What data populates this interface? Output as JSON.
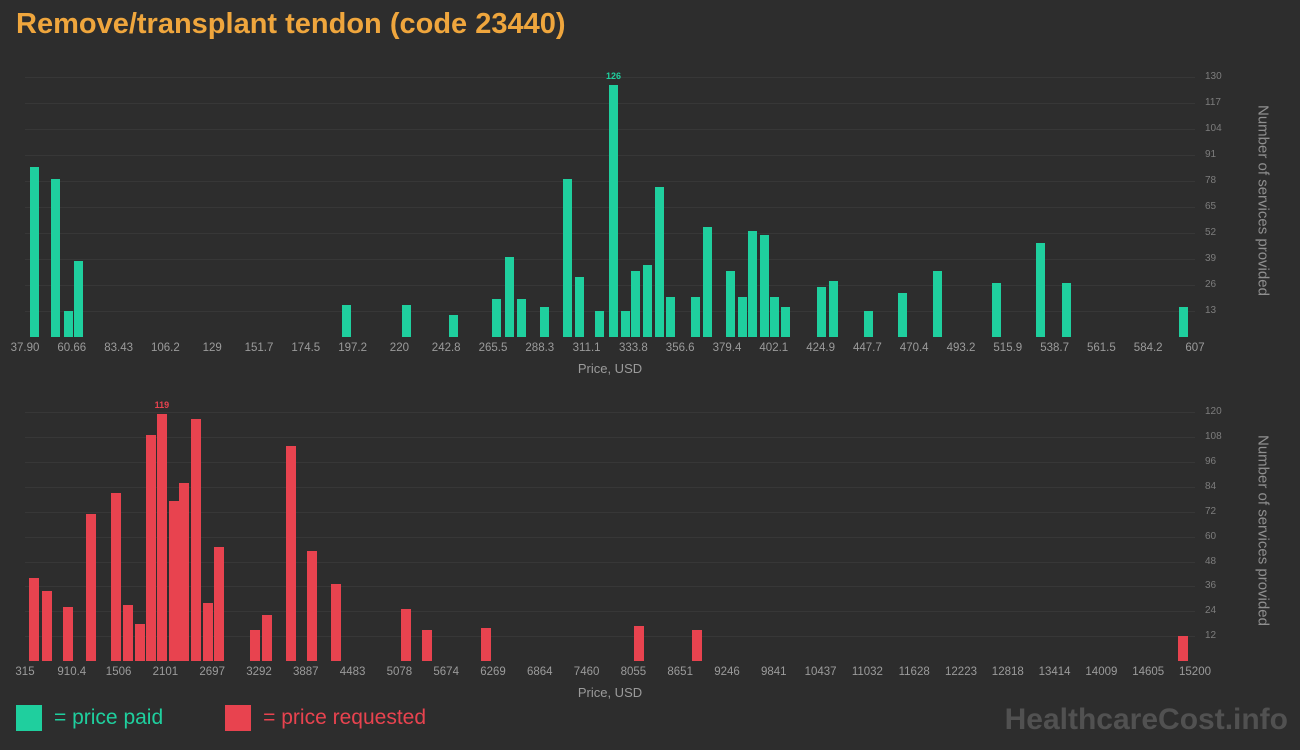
{
  "title": "Remove/transplant tendon (code 23440)",
  "watermark": "HealthcareCost.info",
  "legend": {
    "paid_label": "= price paid",
    "requested_label": "= price requested"
  },
  "colors": {
    "paid": "#1fcf9e",
    "requested": "#e8434f",
    "title": "#efa63d",
    "background": "#2d2d2d",
    "watermark": "#515151"
  },
  "chart_data": [
    {
      "type": "bar",
      "name": "price paid",
      "color_key": "paid",
      "xlabel": "Price, USD",
      "ylabel": "Number of services provided",
      "ylim": [
        0,
        137
      ],
      "y_ticks": [
        130,
        117,
        104,
        91,
        78,
        65,
        52,
        39,
        26,
        13
      ],
      "x_tick_labels": [
        "37.90",
        "60.66",
        "83.43",
        "106.2",
        "129",
        "151.7",
        "174.5",
        "197.2",
        "220",
        "242.8",
        "265.5",
        "288.3",
        "311.1",
        "333.8",
        "356.6",
        "379.4",
        "402.1",
        "424.9",
        "447.7",
        "470.4",
        "493.2",
        "515.9",
        "538.7",
        "561.5",
        "584.2",
        "607"
      ],
      "annotated_max": 126,
      "bars": [
        {
          "pos": 0.008,
          "value": 85
        },
        {
          "pos": 0.026,
          "value": 79
        },
        {
          "pos": 0.037,
          "value": 13
        },
        {
          "pos": 0.046,
          "value": 38
        },
        {
          "pos": 0.275,
          "value": 16
        },
        {
          "pos": 0.326,
          "value": 16
        },
        {
          "pos": 0.366,
          "value": 11
        },
        {
          "pos": 0.403,
          "value": 19
        },
        {
          "pos": 0.414,
          "value": 40
        },
        {
          "pos": 0.424,
          "value": 19
        },
        {
          "pos": 0.444,
          "value": 15
        },
        {
          "pos": 0.464,
          "value": 79
        },
        {
          "pos": 0.474,
          "value": 30
        },
        {
          "pos": 0.491,
          "value": 13
        },
        {
          "pos": 0.503,
          "value": 126,
          "label": "126"
        },
        {
          "pos": 0.513,
          "value": 13
        },
        {
          "pos": 0.522,
          "value": 33
        },
        {
          "pos": 0.532,
          "value": 36
        },
        {
          "pos": 0.542,
          "value": 75
        },
        {
          "pos": 0.552,
          "value": 20
        },
        {
          "pos": 0.573,
          "value": 20
        },
        {
          "pos": 0.583,
          "value": 55
        },
        {
          "pos": 0.603,
          "value": 33
        },
        {
          "pos": 0.613,
          "value": 20
        },
        {
          "pos": 0.622,
          "value": 53
        },
        {
          "pos": 0.632,
          "value": 51
        },
        {
          "pos": 0.641,
          "value": 20
        },
        {
          "pos": 0.65,
          "value": 15
        },
        {
          "pos": 0.681,
          "value": 25
        },
        {
          "pos": 0.691,
          "value": 28
        },
        {
          "pos": 0.721,
          "value": 13
        },
        {
          "pos": 0.75,
          "value": 22
        },
        {
          "pos": 0.78,
          "value": 33
        },
        {
          "pos": 0.83,
          "value": 27
        },
        {
          "pos": 0.868,
          "value": 47
        },
        {
          "pos": 0.89,
          "value": 27
        },
        {
          "pos": 0.99,
          "value": 15
        }
      ]
    },
    {
      "type": "bar",
      "name": "price requested",
      "color_key": "requested",
      "xlabel": "Price, USD",
      "ylabel": "Number of services provided",
      "ylim": [
        0,
        126
      ],
      "y_ticks": [
        120,
        108,
        96,
        84,
        72,
        60,
        48,
        36,
        24,
        12
      ],
      "x_tick_labels": [
        "315",
        "910.4",
        "1506",
        "2101",
        "2697",
        "3292",
        "3887",
        "4483",
        "5078",
        "5674",
        "6269",
        "6864",
        "7460",
        "8055",
        "8651",
        "9246",
        "9841",
        "10437",
        "11032",
        "11628",
        "12223",
        "12818",
        "13414",
        "14009",
        "14605",
        "15200"
      ],
      "annotated_max": 119,
      "bars": [
        {
          "pos": 0.008,
          "value": 40
        },
        {
          "pos": 0.019,
          "value": 34
        },
        {
          "pos": 0.037,
          "value": 26
        },
        {
          "pos": 0.056,
          "value": 71
        },
        {
          "pos": 0.078,
          "value": 81
        },
        {
          "pos": 0.088,
          "value": 27
        },
        {
          "pos": 0.098,
          "value": 18
        },
        {
          "pos": 0.108,
          "value": 109
        },
        {
          "pos": 0.117,
          "value": 119,
          "label": "119"
        },
        {
          "pos": 0.127,
          "value": 77
        },
        {
          "pos": 0.136,
          "value": 86
        },
        {
          "pos": 0.146,
          "value": 117
        },
        {
          "pos": 0.156,
          "value": 28
        },
        {
          "pos": 0.166,
          "value": 55
        },
        {
          "pos": 0.197,
          "value": 15
        },
        {
          "pos": 0.207,
          "value": 22
        },
        {
          "pos": 0.227,
          "value": 104
        },
        {
          "pos": 0.245,
          "value": 53
        },
        {
          "pos": 0.266,
          "value": 37
        },
        {
          "pos": 0.326,
          "value": 25
        },
        {
          "pos": 0.344,
          "value": 15
        },
        {
          "pos": 0.394,
          "value": 16
        },
        {
          "pos": 0.525,
          "value": 17
        },
        {
          "pos": 0.574,
          "value": 15
        },
        {
          "pos": 0.99,
          "value": 12
        }
      ]
    }
  ]
}
